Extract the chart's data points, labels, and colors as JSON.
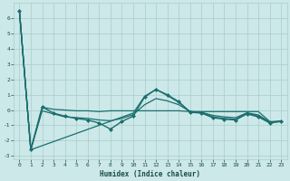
{
  "xlabel": "Humidex (Indice chaleur)",
  "bg_color": "#cce8e8",
  "grid_color": "#aacccc",
  "line_color": "#1a6e6e",
  "xlim": [
    -0.5,
    23.5
  ],
  "ylim": [
    -3.2,
    7.0
  ],
  "xticks": [
    0,
    1,
    2,
    3,
    4,
    5,
    6,
    7,
    8,
    9,
    10,
    11,
    12,
    13,
    14,
    15,
    16,
    17,
    18,
    19,
    20,
    21,
    22,
    23
  ],
  "yticks": [
    -3,
    -2,
    -1,
    0,
    1,
    2,
    3,
    4,
    5,
    6
  ],
  "series": [
    {
      "x": [
        0,
        1,
        2,
        3,
        4,
        5,
        6,
        7,
        8,
        9,
        10,
        11,
        12,
        13,
        14,
        15,
        16,
        17,
        18,
        19,
        20,
        21,
        22,
        23
      ],
      "y": [
        6.5,
        -2.6,
        0.2,
        -0.2,
        -0.4,
        -0.55,
        -0.65,
        -0.85,
        -1.25,
        -0.75,
        -0.4,
        0.85,
        1.35,
        1.0,
        0.55,
        -0.15,
        -0.2,
        -0.5,
        -0.6,
        -0.65,
        -0.25,
        -0.45,
        -0.85,
        -0.75
      ],
      "marker": "D",
      "markersize": 2.0,
      "linewidth": 1.0
    },
    {
      "x": [
        0,
        1,
        2,
        3,
        4,
        5,
        6,
        7,
        8,
        9,
        10,
        11,
        12,
        13,
        14,
        15,
        16,
        17,
        18,
        19,
        20,
        21,
        22,
        23
      ],
      "y": [
        6.5,
        -2.6,
        0.18,
        0.05,
        0.0,
        -0.05,
        -0.05,
        -0.1,
        -0.05,
        -0.05,
        -0.05,
        -0.05,
        -0.05,
        -0.05,
        -0.05,
        -0.1,
        -0.1,
        -0.1,
        -0.1,
        -0.1,
        -0.1,
        -0.1,
        -0.75,
        -0.75
      ],
      "marker": null,
      "linewidth": 0.9
    },
    {
      "x": [
        0,
        1,
        10,
        11,
        12,
        13,
        14,
        15,
        16,
        17,
        18,
        19,
        20,
        21,
        22,
        23
      ],
      "y": [
        6.5,
        -2.6,
        -0.2,
        0.9,
        1.35,
        0.95,
        0.5,
        -0.1,
        -0.15,
        -0.45,
        -0.55,
        -0.6,
        -0.2,
        -0.4,
        -0.8,
        -0.72
      ],
      "marker": null,
      "linewidth": 0.9
    },
    {
      "x": [
        0,
        1,
        2,
        3,
        4,
        5,
        6,
        7,
        8,
        9,
        10,
        11,
        12,
        13,
        14,
        15,
        16,
        17,
        18,
        19,
        20,
        21,
        22,
        23
      ],
      "y": [
        6.5,
        -2.6,
        -0.05,
        -0.25,
        -0.45,
        -0.5,
        -0.55,
        -0.65,
        -0.7,
        -0.55,
        -0.3,
        0.35,
        0.75,
        0.6,
        0.35,
        -0.1,
        -0.15,
        -0.35,
        -0.45,
        -0.5,
        -0.18,
        -0.32,
        -0.8,
        -0.72
      ],
      "marker": null,
      "linewidth": 0.9
    }
  ]
}
